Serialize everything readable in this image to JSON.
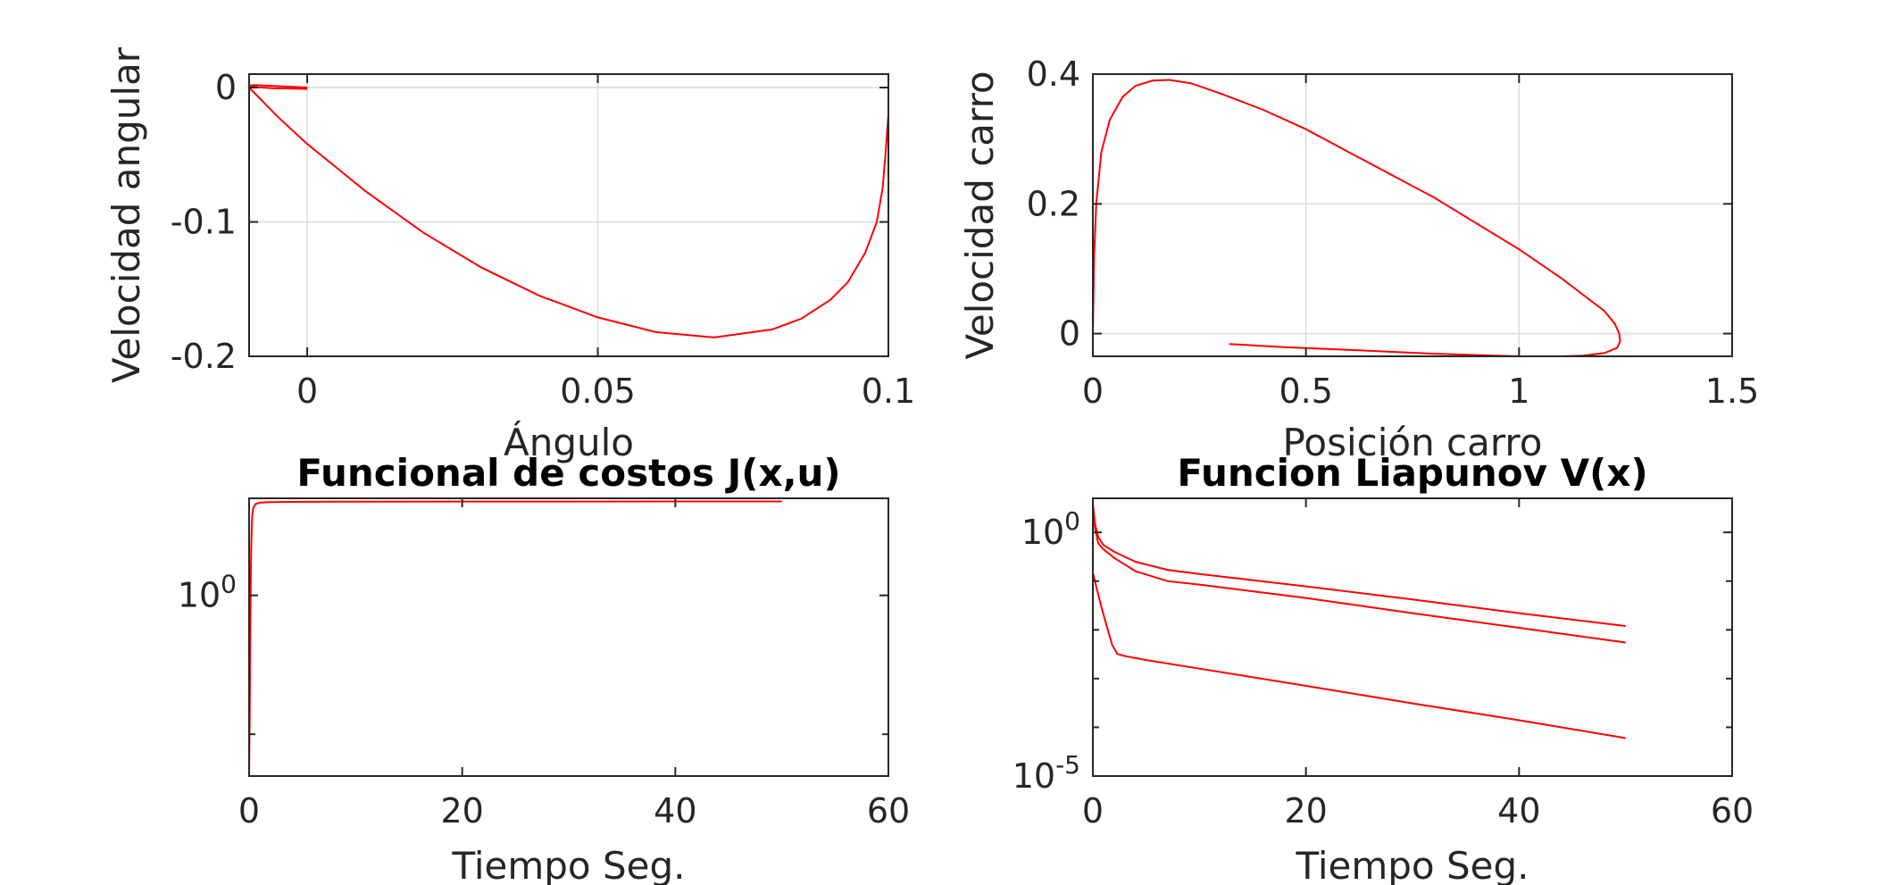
{
  "chart_data": [
    {
      "type": "line",
      "title": "",
      "xlabel": "Ángulo",
      "ylabel": "Velocidad angular",
      "xlim": [
        -0.01,
        0.1
      ],
      "ylim": [
        -0.2,
        0.01
      ],
      "xscale": "linear",
      "yscale": "linear",
      "grid": true,
      "xticks": [
        0,
        0.05,
        0.1
      ],
      "xticklabels": [
        "0",
        "0.05",
        "0.1"
      ],
      "yticks": [
        -0.2,
        -0.1,
        0
      ],
      "yticklabels": [
        "-0.2",
        "-0.1",
        "0"
      ],
      "color": "#ff0000",
      "series": [
        {
          "x": [
            0.0,
            -0.005,
            -0.009,
            -0.01,
            -0.0095,
            -0.006,
            -0.002,
            0.0
          ],
          "y": [
            0.0,
            0.001,
            0.0018,
            0.0015,
            0.0005,
            -0.0005,
            -0.0008,
            -0.001
          ]
        },
        {
          "x": [
            -0.01,
            -0.005,
            0.0,
            0.01,
            0.02,
            0.03,
            0.04,
            0.05,
            0.06,
            0.07,
            0.08,
            0.085,
            0.09,
            0.093,
            0.096,
            0.098,
            0.099,
            0.0995,
            0.1,
            0.1
          ],
          "y": [
            0.0,
            -0.022,
            -0.042,
            -0.077,
            -0.108,
            -0.134,
            -0.155,
            -0.171,
            -0.182,
            -0.186,
            -0.18,
            -0.172,
            -0.158,
            -0.145,
            -0.123,
            -0.1,
            -0.075,
            -0.05,
            -0.02,
            0.0
          ]
        }
      ]
    },
    {
      "type": "line",
      "title": "",
      "xlabel": "Posición carro",
      "ylabel": "Velocidad carro",
      "xlim": [
        0,
        1.5
      ],
      "ylim": [
        -0.035,
        0.4
      ],
      "xscale": "linear",
      "yscale": "linear",
      "grid": true,
      "xticks": [
        0,
        0.5,
        1,
        1.5
      ],
      "xticklabels": [
        "0",
        "0.5",
        "1",
        "1.5"
      ],
      "yticks": [
        0,
        0.2,
        0.4
      ],
      "yticklabels": [
        "0",
        "0.2",
        "0.4"
      ],
      "color": "#ff0000",
      "series": [
        {
          "x": [
            0,
            0.003,
            0.008,
            0.02,
            0.04,
            0.07,
            0.1,
            0.14,
            0.18,
            0.23,
            0.3,
            0.4,
            0.5,
            0.6,
            0.7,
            0.8,
            0.9,
            1.0,
            1.1,
            1.15,
            1.2,
            1.225,
            1.235,
            1.237,
            1.23,
            1.2,
            1.15,
            1.1,
            1.0,
            0.8,
            0.6,
            0.45,
            0.32
          ],
          "y": [
            0.0,
            0.12,
            0.2,
            0.28,
            0.33,
            0.365,
            0.382,
            0.39,
            0.391,
            0.386,
            0.37,
            0.345,
            0.315,
            0.28,
            0.245,
            0.21,
            0.17,
            0.13,
            0.085,
            0.06,
            0.035,
            0.015,
            0.0,
            -0.012,
            -0.022,
            -0.03,
            -0.034,
            -0.035,
            -0.035,
            -0.031,
            -0.025,
            -0.021,
            -0.016
          ]
        }
      ]
    },
    {
      "type": "line",
      "title": "Funcional de costos J(x,u)",
      "xlabel": "Tiempo Seg.",
      "ylabel": "",
      "xlim": [
        0,
        60
      ],
      "ylim": [
        0.05,
        5
      ],
      "xscale": "linear",
      "yscale": "log",
      "grid": false,
      "xticks": [
        0,
        20,
        40,
        60
      ],
      "xticklabels": [
        "0",
        "20",
        "40",
        "60"
      ],
      "yticks": [
        1
      ],
      "yticklabels": [
        {
          "base": "10",
          "exp": "0"
        }
      ],
      "color": "#ff0000",
      "series": [
        {
          "x": [
            0,
            0.05,
            0.1,
            0.15,
            0.2,
            0.25,
            0.3,
            0.4,
            0.6,
            1,
            2,
            5,
            10,
            20,
            30,
            40,
            50
          ],
          "y": [
            0.05,
            0.12,
            0.4,
            1.2,
            2.2,
            3.2,
            3.8,
            4.3,
            4.55,
            4.65,
            4.7,
            4.72,
            4.73,
            4.74,
            4.74,
            4.75,
            4.75
          ]
        }
      ]
    },
    {
      "type": "line",
      "title": "Funcion Liapunov V(x)",
      "xlabel": "Tiempo Seg.",
      "ylabel": "",
      "xlim": [
        0,
        60
      ],
      "ylim": [
        1e-05,
        5
      ],
      "xscale": "linear",
      "yscale": "log",
      "grid": false,
      "xticks": [
        0,
        20,
        40,
        60
      ],
      "xticklabels": [
        "0",
        "20",
        "40",
        "60"
      ],
      "yticks": [
        1e-05,
        1
      ],
      "yticklabels": [
        {
          "base": "10",
          "exp": "-5"
        },
        {
          "base": "10",
          "exp": "0"
        }
      ],
      "color": "#ff0000",
      "series": [
        {
          "x": [
            0,
            0.2,
            0.5,
            1,
            2,
            4,
            7,
            10,
            20,
            30,
            40,
            50
          ],
          "y": [
            4,
            1.5,
            0.8,
            0.55,
            0.4,
            0.25,
            0.17,
            0.14,
            0.078,
            0.042,
            0.022,
            0.012
          ]
        },
        {
          "x": [
            0,
            0.2,
            0.5,
            1,
            2,
            4,
            7,
            10,
            20,
            30,
            40,
            50
          ],
          "y": [
            3,
            1.2,
            0.6,
            0.45,
            0.3,
            0.16,
            0.1,
            0.085,
            0.045,
            0.022,
            0.011,
            0.0055
          ]
        },
        {
          "x": [
            0,
            0.3,
            0.8,
            1.3,
            1.8,
            2.3,
            3,
            5,
            10,
            20,
            30,
            40,
            50
          ],
          "y": [
            0.15,
            0.08,
            0.03,
            0.012,
            0.005,
            0.0032,
            0.0029,
            0.0024,
            0.0016,
            0.00071,
            0.00031,
            0.00014,
            6e-05
          ]
        }
      ]
    }
  ]
}
